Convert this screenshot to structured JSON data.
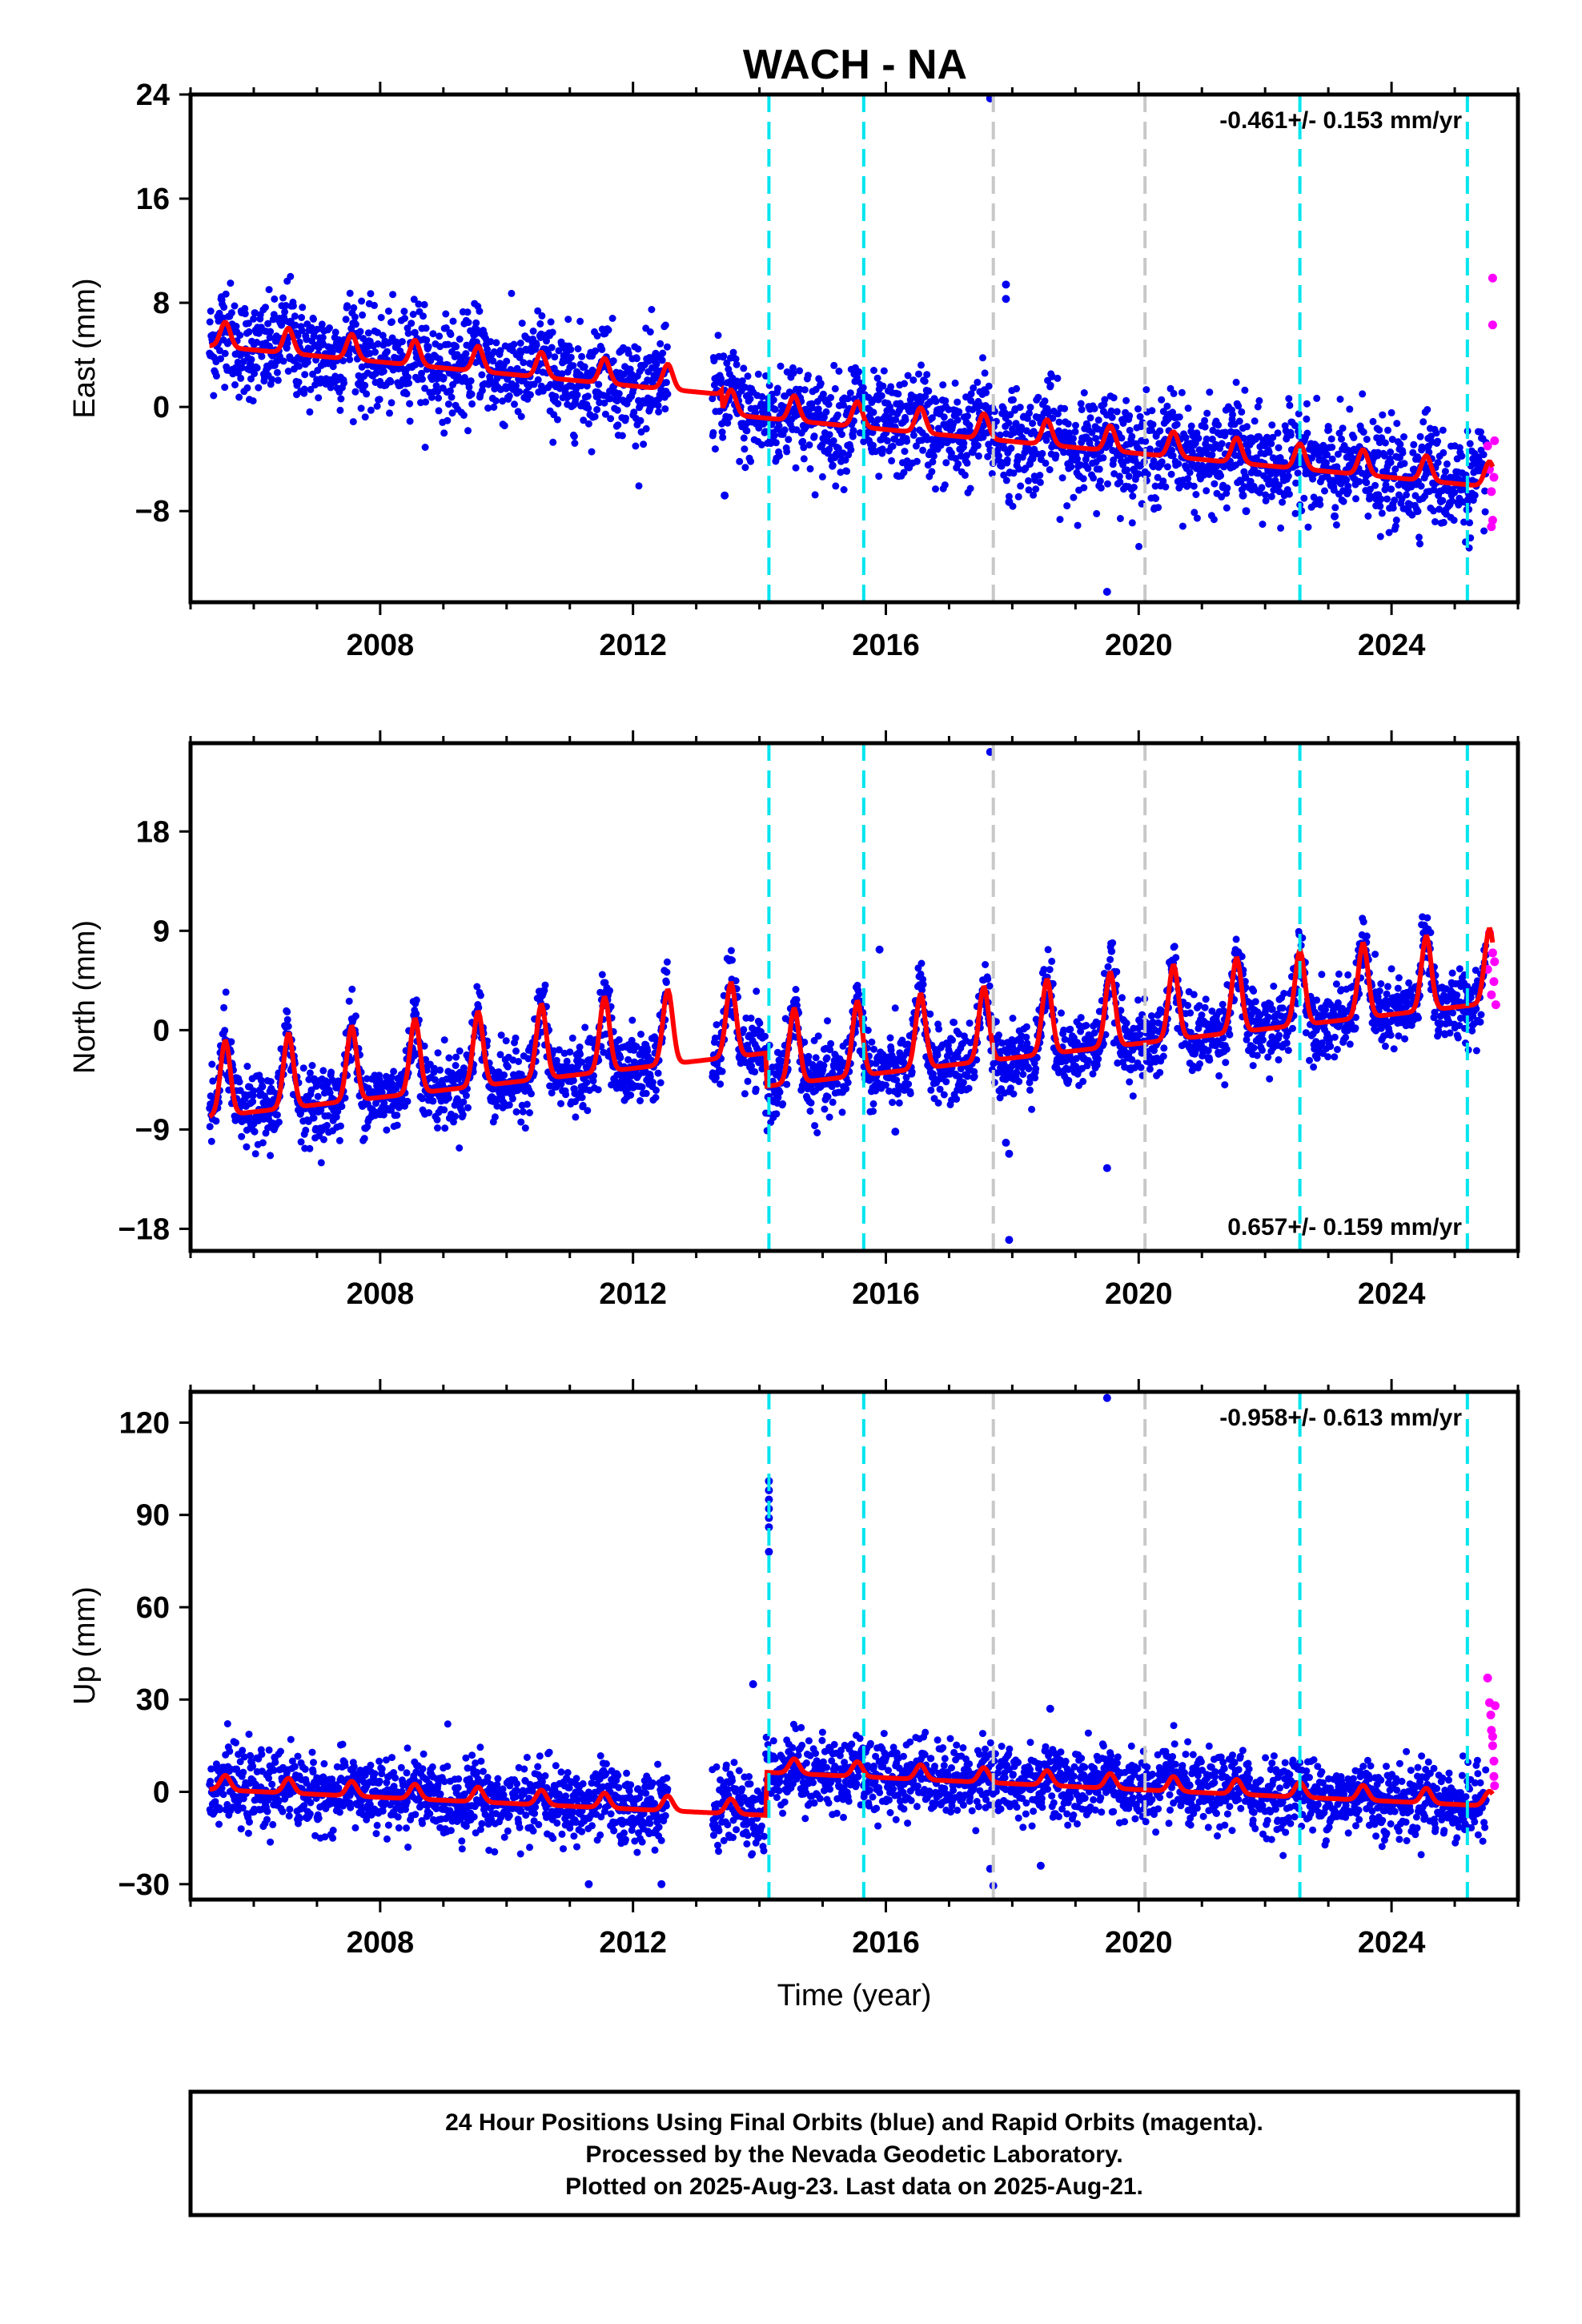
{
  "title": "WACH - NA",
  "colors": {
    "final": "#0000ee",
    "rapid": "#ff00ff",
    "model": "#ff0000",
    "equipment_change": "#00e5ee",
    "other_event": "#c8c8c8"
  },
  "chart_data": [
    {
      "type": "scatter",
      "panel": "east",
      "ylabel": "East (mm)",
      "rate": "-0.461+/- 0.153 mm/yr",
      "rate_position": "top-right",
      "xlim": [
        2005.0,
        2026.0
      ],
      "ylim": [
        -15,
        24
      ],
      "yticks": [
        24,
        16,
        8,
        0,
        -8
      ],
      "xticks": [
        2008,
        2012,
        2016,
        2020,
        2024
      ],
      "trend": {
        "rate": -0.461,
        "offset_2005": 5.2
      },
      "annual_amplitude": 1.2,
      "noise": 1.9,
      "offsets": [
        {
          "t": 2013.4,
          "dy": -1.5
        }
      ],
      "gap": [
        2012.55,
        2013.25
      ],
      "outliers": [
        [
          2017.65,
          23.7
        ],
        [
          2017.9,
          9.4
        ],
        [
          2017.9,
          8.3
        ],
        [
          2019.5,
          -14.2
        ],
        [
          2017.95,
          -7.3
        ],
        [
          2021.65,
          -6.8
        ],
        [
          2021.7,
          -8.0
        ],
        [
          2023.1,
          -8.4
        ],
        [
          2013.45,
          -6.8
        ]
      ],
      "rapid": [
        [
          2025.52,
          -3.0
        ],
        [
          2025.55,
          -4.8
        ],
        [
          2025.58,
          -9.2
        ],
        [
          2025.6,
          9.9
        ],
        [
          2025.6,
          6.3
        ],
        [
          2025.58,
          -6.5
        ],
        [
          2025.6,
          -8.7
        ],
        [
          2025.62,
          -5.4
        ],
        [
          2025.63,
          -2.6
        ]
      ]
    },
    {
      "type": "scatter",
      "panel": "north",
      "ylabel": "North (mm)",
      "rate": "0.657+/- 0.159 mm/yr",
      "rate_position": "bottom-right",
      "xlim": [
        2005.0,
        2026.0
      ],
      "ylim": [
        -20,
        26
      ],
      "yticks": [
        18,
        9,
        0,
        -9,
        -18
      ],
      "xticks": [
        2008,
        2012,
        2016,
        2020,
        2024
      ],
      "trend": {
        "rate": 0.657,
        "offset_2005": -6.8
      },
      "annual_amplitude": 4.2,
      "noise": 1.6,
      "offsets": [
        {
          "t": 2014.1,
          "dy": -3.0
        }
      ],
      "gap": [
        2012.55,
        2013.25
      ],
      "outliers": [
        [
          2017.65,
          25.2
        ],
        [
          2017.9,
          -10.2
        ],
        [
          2017.95,
          -11.2
        ],
        [
          2017.95,
          -19.0
        ],
        [
          2019.5,
          -12.5
        ],
        [
          2015.9,
          7.3
        ],
        [
          2016.15,
          -9.2
        ]
      ],
      "rapid": [
        [
          2025.52,
          5.5
        ],
        [
          2025.55,
          8.8
        ],
        [
          2025.58,
          3.2
        ],
        [
          2025.6,
          7.0
        ],
        [
          2025.62,
          4.4
        ],
        [
          2025.63,
          6.2
        ],
        [
          2025.65,
          2.3
        ]
      ]
    },
    {
      "type": "scatter",
      "panel": "up",
      "ylabel": "Up (mm)",
      "xlabel": "Time (year)",
      "rate": "-0.958+/- 0.613 mm/yr",
      "rate_position": "top-right",
      "xlim": [
        2005.0,
        2026.0
      ],
      "ylim": [
        -35,
        130
      ],
      "yticks": [
        120,
        90,
        60,
        30,
        0,
        -30
      ],
      "xticks": [
        2008,
        2012,
        2016,
        2020,
        2024
      ],
      "trend": {
        "rate": -0.958,
        "offset_2005": 2.0
      },
      "annual_amplitude": 3.0,
      "noise": 5.8,
      "offsets": [
        {
          "t": 2014.1,
          "dy": 14.0
        }
      ],
      "gap": [
        2012.55,
        2013.25
      ],
      "outliers": [
        [
          2019.5,
          128.0
        ],
        [
          2014.15,
          101.0
        ],
        [
          2014.15,
          98.0
        ],
        [
          2014.15,
          95.0
        ],
        [
          2014.15,
          92.0
        ],
        [
          2014.15,
          89.0
        ],
        [
          2014.15,
          86.0
        ],
        [
          2014.15,
          78.0
        ],
        [
          2017.65,
          -25.0
        ],
        [
          2017.7,
          -30.5
        ],
        [
          2018.45,
          -24.0
        ],
        [
          2013.9,
          35.0
        ],
        [
          2018.6,
          27.0
        ],
        [
          2011.3,
          -30.0
        ],
        [
          2012.45,
          -30.0
        ]
      ],
      "rapid": [
        [
          2025.52,
          37.0
        ],
        [
          2025.55,
          29.0
        ],
        [
          2025.57,
          25.0
        ],
        [
          2025.58,
          20.0
        ],
        [
          2025.6,
          15.0
        ],
        [
          2025.62,
          10.0
        ],
        [
          2025.62,
          5.0
        ],
        [
          2025.63,
          2.0
        ],
        [
          2025.64,
          28.0
        ],
        [
          2025.6,
          18.0
        ]
      ]
    }
  ],
  "event_lines": {
    "cyan": [
      2014.15,
      2015.65,
      2022.55,
      2025.2
    ],
    "gray": [
      2017.7,
      2020.1
    ]
  },
  "footer": {
    "line1": "24 Hour Positions Using Final Orbits (blue) and Rapid Orbits (magenta).",
    "line2": "Processed by the Nevada Geodetic Laboratory.",
    "line3": "Plotted on 2025-Aug-23. Last data on 2025-Aug-21."
  }
}
